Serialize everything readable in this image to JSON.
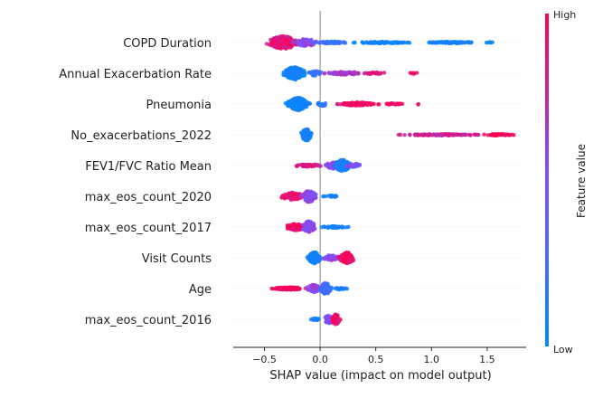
{
  "chart_data": {
    "type": "scatter",
    "subtype": "shap-beeswarm",
    "title": "",
    "xlabel": "SHAP value (impact on model output)",
    "ylabel": "",
    "xlim": [
      -0.78,
      1.85
    ],
    "xticks": [
      -0.5,
      0.0,
      0.5,
      1.0,
      1.5
    ],
    "xtick_labels": [
      "−0.5",
      "0.0",
      "0.5",
      "1.0",
      "1.5"
    ],
    "grid": false,
    "zero_line": true,
    "colorbar": {
      "label": "Feature value",
      "high_label": "High",
      "low_label": "Low",
      "low_color": "#008afb",
      "mid_color": "#7c52ff",
      "high_color": "#ff0051"
    },
    "features": [
      {
        "name": "COPD Duration",
        "clusters": [
          {
            "center": -0.33,
            "spread": 0.13,
            "value": 0.9,
            "height": 0.5,
            "count": 240
          },
          {
            "center": -0.13,
            "spread": 0.09,
            "value": 0.55,
            "height": 0.3,
            "count": 80
          },
          {
            "center": 0.1,
            "spread": 0.14,
            "value": 0.2,
            "height": 0.08,
            "count": 50
          },
          {
            "center": 0.55,
            "spread": 0.24,
            "value": 0.05,
            "height": 0.06,
            "count": 90
          },
          {
            "center": 1.18,
            "spread": 0.22,
            "value": 0.03,
            "height": 0.06,
            "count": 90
          },
          {
            "center": 1.52,
            "spread": 0.03,
            "value": 0.05,
            "height": 0.04,
            "count": 6
          }
        ]
      },
      {
        "name": "Annual Exacerbation Rate",
        "clusters": [
          {
            "center": -0.23,
            "spread": 0.08,
            "value": 0.05,
            "height": 0.5,
            "count": 230
          },
          {
            "center": -0.05,
            "spread": 0.05,
            "value": 0.2,
            "height": 0.2,
            "count": 30
          },
          {
            "center": 0.22,
            "spread": 0.14,
            "value": 0.65,
            "height": 0.12,
            "count": 90
          },
          {
            "center": 0.5,
            "spread": 0.1,
            "value": 0.9,
            "height": 0.07,
            "count": 30
          },
          {
            "center": 0.83,
            "spread": 0.05,
            "value": 1.0,
            "height": 0.05,
            "count": 6
          }
        ]
      },
      {
        "name": "Pneumonia",
        "clusters": [
          {
            "center": -0.2,
            "spread": 0.08,
            "value": 0.05,
            "height": 0.5,
            "count": 230
          },
          {
            "center": 0.02,
            "spread": 0.04,
            "value": 0.2,
            "height": 0.15,
            "count": 20
          },
          {
            "center": 0.33,
            "spread": 0.14,
            "value": 0.95,
            "height": 0.12,
            "count": 130
          },
          {
            "center": 0.65,
            "spread": 0.08,
            "value": 0.95,
            "height": 0.06,
            "count": 25
          },
          {
            "center": 0.88,
            "spread": 0.01,
            "value": 1.0,
            "height": 0.04,
            "count": 2
          }
        ]
      },
      {
        "name": "No_exacerbations_2022",
        "clusters": [
          {
            "center": -0.12,
            "spread": 0.04,
            "value": 0.05,
            "height": 0.45,
            "count": 120
          },
          {
            "center": 1.1,
            "spread": 0.3,
            "value": 0.8,
            "height": 0.06,
            "count": 110
          },
          {
            "center": 1.6,
            "spread": 0.12,
            "value": 1.0,
            "height": 0.06,
            "count": 50
          }
        ]
      },
      {
        "name": "FEV1/FVC Ratio Mean",
        "clusters": [
          {
            "center": -0.1,
            "spread": 0.12,
            "value": 0.85,
            "height": 0.1,
            "count": 60
          },
          {
            "center": 0.12,
            "spread": 0.06,
            "value": 0.5,
            "height": 0.25,
            "count": 60
          },
          {
            "center": 0.2,
            "spread": 0.06,
            "value": 0.1,
            "height": 0.45,
            "count": 120
          },
          {
            "center": 0.3,
            "spread": 0.06,
            "value": 0.5,
            "height": 0.15,
            "count": 30
          }
        ]
      },
      {
        "name": "max_eos_count_2020",
        "clusters": [
          {
            "center": -0.25,
            "spread": 0.09,
            "value": 0.95,
            "height": 0.3,
            "count": 90
          },
          {
            "center": -0.1,
            "spread": 0.05,
            "value": 0.55,
            "height": 0.45,
            "count": 110
          },
          {
            "center": 0.1,
            "spread": 0.07,
            "value": 0.05,
            "height": 0.07,
            "count": 20
          }
        ]
      },
      {
        "name": "max_eos_count_2017",
        "clusters": [
          {
            "center": -0.22,
            "spread": 0.08,
            "value": 0.95,
            "height": 0.25,
            "count": 80
          },
          {
            "center": -0.1,
            "spread": 0.05,
            "value": 0.55,
            "height": 0.45,
            "count": 110
          },
          {
            "center": 0.12,
            "spread": 0.1,
            "value": 0.05,
            "height": 0.07,
            "count": 40
          }
        ]
      },
      {
        "name": "Visit Counts",
        "clusters": [
          {
            "center": -0.05,
            "spread": 0.05,
            "value": 0.05,
            "height": 0.45,
            "count": 130
          },
          {
            "center": 0.1,
            "spread": 0.07,
            "value": 0.55,
            "height": 0.2,
            "count": 60
          },
          {
            "center": 0.24,
            "spread": 0.06,
            "value": 0.95,
            "height": 0.42,
            "count": 110
          }
        ]
      },
      {
        "name": "Age",
        "clusters": [
          {
            "center": -0.28,
            "spread": 0.13,
            "value": 0.95,
            "height": 0.1,
            "count": 120
          },
          {
            "center": -0.06,
            "spread": 0.05,
            "value": 0.6,
            "height": 0.3,
            "count": 60
          },
          {
            "center": 0.05,
            "spread": 0.04,
            "value": 0.25,
            "height": 0.45,
            "count": 110
          },
          {
            "center": 0.18,
            "spread": 0.06,
            "value": 0.1,
            "height": 0.08,
            "count": 25
          }
        ]
      },
      {
        "name": "max_eos_count_2016",
        "clusters": [
          {
            "center": -0.05,
            "spread": 0.04,
            "value": 0.1,
            "height": 0.08,
            "count": 30
          },
          {
            "center": 0.08,
            "spread": 0.04,
            "value": 0.5,
            "height": 0.3,
            "count": 70
          },
          {
            "center": 0.14,
            "spread": 0.03,
            "value": 0.95,
            "height": 0.4,
            "count": 60
          }
        ]
      }
    ]
  }
}
